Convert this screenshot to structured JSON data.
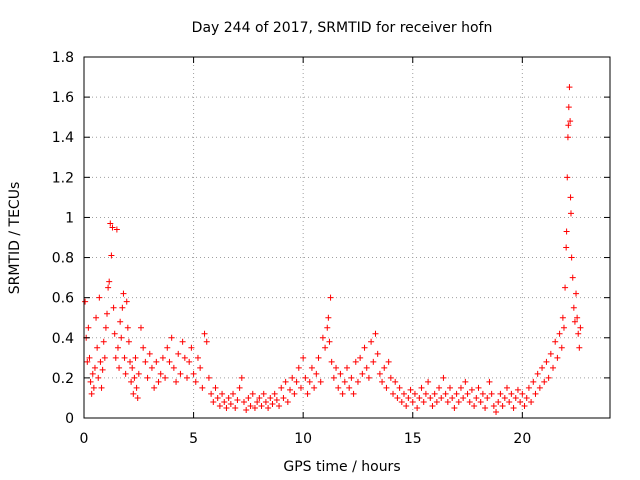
{
  "chart_data": {
    "type": "scatter",
    "title": "Day 244 of 2017, SRMTID for receiver hofn",
    "xlabel": "GPS time / hours",
    "ylabel": "SRMTID / TECUs",
    "xlim": [
      0,
      24
    ],
    "ylim": [
      0,
      1.8
    ],
    "grid": true,
    "marker": "+",
    "color": "#ff0000",
    "x_ticks": [
      "0",
      "5",
      "10",
      "15",
      "20"
    ],
    "y_ticks": [
      "0",
      "0.2",
      "0.4",
      "0.6",
      "0.8",
      "1",
      "1.2",
      "1.4",
      "1.6",
      "1.8"
    ],
    "series": [
      {
        "name": "SRMTID",
        "points": [
          [
            0.05,
            0.58
          ],
          [
            0.1,
            0.4
          ],
          [
            0.15,
            0.28
          ],
          [
            0.2,
            0.45
          ],
          [
            0.25,
            0.3
          ],
          [
            0.3,
            0.18
          ],
          [
            0.35,
            0.12
          ],
          [
            0.4,
            0.22
          ],
          [
            0.45,
            0.15
          ],
          [
            0.5,
            0.25
          ],
          [
            0.55,
            0.5
          ],
          [
            0.6,
            0.35
          ],
          [
            0.65,
            0.2
          ],
          [
            0.7,
            0.6
          ],
          [
            0.75,
            0.28
          ],
          [
            0.8,
            0.15
          ],
          [
            0.85,
            0.24
          ],
          [
            0.9,
            0.38
          ],
          [
            0.95,
            0.3
          ],
          [
            1.0,
            0.45
          ],
          [
            1.05,
            0.52
          ],
          [
            1.1,
            0.65
          ],
          [
            1.15,
            0.68
          ],
          [
            1.2,
            0.97
          ],
          [
            1.25,
            0.81
          ],
          [
            1.3,
            0.95
          ],
          [
            1.35,
            0.55
          ],
          [
            1.4,
            0.42
          ],
          [
            1.45,
            0.3
          ],
          [
            1.5,
            0.94
          ],
          [
            1.55,
            0.35
          ],
          [
            1.6,
            0.25
          ],
          [
            1.65,
            0.48
          ],
          [
            1.7,
            0.4
          ],
          [
            1.75,
            0.55
          ],
          [
            1.8,
            0.62
          ],
          [
            1.85,
            0.3
          ],
          [
            1.9,
            0.22
          ],
          [
            1.95,
            0.58
          ],
          [
            2.0,
            0.45
          ],
          [
            2.05,
            0.38
          ],
          [
            2.1,
            0.28
          ],
          [
            2.15,
            0.18
          ],
          [
            2.2,
            0.25
          ],
          [
            2.25,
            0.12
          ],
          [
            2.3,
            0.2
          ],
          [
            2.35,
            0.3
          ],
          [
            2.4,
            0.15
          ],
          [
            2.45,
            0.1
          ],
          [
            2.5,
            0.22
          ],
          [
            2.6,
            0.45
          ],
          [
            2.7,
            0.35
          ],
          [
            2.8,
            0.28
          ],
          [
            2.9,
            0.2
          ],
          [
            3.0,
            0.32
          ],
          [
            3.1,
            0.25
          ],
          [
            3.2,
            0.15
          ],
          [
            3.3,
            0.28
          ],
          [
            3.4,
            0.18
          ],
          [
            3.5,
            0.22
          ],
          [
            3.6,
            0.3
          ],
          [
            3.7,
            0.2
          ],
          [
            3.8,
            0.35
          ],
          [
            3.9,
            0.28
          ],
          [
            4.0,
            0.4
          ],
          [
            4.1,
            0.25
          ],
          [
            4.2,
            0.18
          ],
          [
            4.3,
            0.32
          ],
          [
            4.4,
            0.22
          ],
          [
            4.5,
            0.38
          ],
          [
            4.6,
            0.3
          ],
          [
            4.7,
            0.2
          ],
          [
            4.8,
            0.28
          ],
          [
            4.9,
            0.35
          ],
          [
            5.0,
            0.22
          ],
          [
            5.1,
            0.18
          ],
          [
            5.2,
            0.3
          ],
          [
            5.3,
            0.25
          ],
          [
            5.4,
            0.15
          ],
          [
            5.5,
            0.42
          ],
          [
            5.6,
            0.38
          ],
          [
            5.7,
            0.2
          ],
          [
            5.8,
            0.12
          ],
          [
            5.9,
            0.08
          ],
          [
            6.0,
            0.15
          ],
          [
            6.1,
            0.1
          ],
          [
            6.2,
            0.06
          ],
          [
            6.3,
            0.12
          ],
          [
            6.4,
            0.08
          ],
          [
            6.5,
            0.05
          ],
          [
            6.6,
            0.1
          ],
          [
            6.7,
            0.07
          ],
          [
            6.8,
            0.12
          ],
          [
            6.9,
            0.05
          ],
          [
            7.0,
            0.09
          ],
          [
            7.1,
            0.15
          ],
          [
            7.2,
            0.2
          ],
          [
            7.3,
            0.08
          ],
          [
            7.4,
            0.04
          ],
          [
            7.5,
            0.1
          ],
          [
            7.6,
            0.06
          ],
          [
            7.7,
            0.12
          ],
          [
            7.8,
            0.05
          ],
          [
            7.9,
            0.08
          ],
          [
            8.0,
            0.1
          ],
          [
            8.1,
            0.06
          ],
          [
            8.2,
            0.12
          ],
          [
            8.3,
            0.08
          ],
          [
            8.4,
            0.05
          ],
          [
            8.5,
            0.1
          ],
          [
            8.6,
            0.07
          ],
          [
            8.7,
            0.12
          ],
          [
            8.8,
            0.09
          ],
          [
            8.9,
            0.06
          ],
          [
            9.0,
            0.15
          ],
          [
            9.1,
            0.1
          ],
          [
            9.2,
            0.18
          ],
          [
            9.3,
            0.08
          ],
          [
            9.4,
            0.14
          ],
          [
            9.5,
            0.2
          ],
          [
            9.6,
            0.12
          ],
          [
            9.7,
            0.18
          ],
          [
            9.8,
            0.25
          ],
          [
            9.9,
            0.15
          ],
          [
            10.0,
            0.3
          ],
          [
            10.1,
            0.2
          ],
          [
            10.2,
            0.12
          ],
          [
            10.3,
            0.18
          ],
          [
            10.4,
            0.25
          ],
          [
            10.5,
            0.15
          ],
          [
            10.6,
            0.22
          ],
          [
            10.7,
            0.3
          ],
          [
            10.8,
            0.18
          ],
          [
            10.9,
            0.4
          ],
          [
            11.0,
            0.35
          ],
          [
            11.1,
            0.45
          ],
          [
            11.15,
            0.5
          ],
          [
            11.2,
            0.38
          ],
          [
            11.25,
            0.6
          ],
          [
            11.3,
            0.28
          ],
          [
            11.4,
            0.2
          ],
          [
            11.5,
            0.25
          ],
          [
            11.6,
            0.15
          ],
          [
            11.7,
            0.22
          ],
          [
            11.8,
            0.12
          ],
          [
            11.9,
            0.18
          ],
          [
            12.0,
            0.25
          ],
          [
            12.1,
            0.15
          ],
          [
            12.2,
            0.2
          ],
          [
            12.3,
            0.12
          ],
          [
            12.4,
            0.28
          ],
          [
            12.5,
            0.18
          ],
          [
            12.6,
            0.3
          ],
          [
            12.7,
            0.22
          ],
          [
            12.8,
            0.35
          ],
          [
            12.9,
            0.25
          ],
          [
            13.0,
            0.2
          ],
          [
            13.1,
            0.38
          ],
          [
            13.2,
            0.28
          ],
          [
            13.3,
            0.42
          ],
          [
            13.4,
            0.32
          ],
          [
            13.5,
            0.22
          ],
          [
            13.6,
            0.18
          ],
          [
            13.7,
            0.25
          ],
          [
            13.8,
            0.15
          ],
          [
            13.9,
            0.28
          ],
          [
            14.0,
            0.2
          ],
          [
            14.1,
            0.12
          ],
          [
            14.2,
            0.18
          ],
          [
            14.3,
            0.1
          ],
          [
            14.4,
            0.15
          ],
          [
            14.5,
            0.08
          ],
          [
            14.6,
            0.12
          ],
          [
            14.7,
            0.06
          ],
          [
            14.8,
            0.1
          ],
          [
            14.9,
            0.14
          ],
          [
            15.0,
            0.08
          ],
          [
            15.1,
            0.12
          ],
          [
            15.2,
            0.05
          ],
          [
            15.3,
            0.1
          ],
          [
            15.4,
            0.15
          ],
          [
            15.5,
            0.08
          ],
          [
            15.6,
            0.12
          ],
          [
            15.7,
            0.18
          ],
          [
            15.8,
            0.1
          ],
          [
            15.9,
            0.06
          ],
          [
            16.0,
            0.12
          ],
          [
            16.1,
            0.08
          ],
          [
            16.2,
            0.15
          ],
          [
            16.3,
            0.1
          ],
          [
            16.4,
            0.2
          ],
          [
            16.5,
            0.12
          ],
          [
            16.6,
            0.08
          ],
          [
            16.7,
            0.15
          ],
          [
            16.8,
            0.1
          ],
          [
            16.9,
            0.05
          ],
          [
            17.0,
            0.12
          ],
          [
            17.1,
            0.08
          ],
          [
            17.2,
            0.15
          ],
          [
            17.3,
            0.1
          ],
          [
            17.4,
            0.18
          ],
          [
            17.5,
            0.12
          ],
          [
            17.6,
            0.08
          ],
          [
            17.7,
            0.14
          ],
          [
            17.8,
            0.06
          ],
          [
            17.9,
            0.1
          ],
          [
            18.0,
            0.15
          ],
          [
            18.1,
            0.08
          ],
          [
            18.2,
            0.12
          ],
          [
            18.3,
            0.05
          ],
          [
            18.4,
            0.1
          ],
          [
            18.5,
            0.18
          ],
          [
            18.6,
            0.12
          ],
          [
            18.7,
            0.06
          ],
          [
            18.8,
            0.03
          ],
          [
            18.9,
            0.08
          ],
          [
            19.0,
            0.12
          ],
          [
            19.1,
            0.06
          ],
          [
            19.2,
            0.1
          ],
          [
            19.3,
            0.15
          ],
          [
            19.4,
            0.08
          ],
          [
            19.5,
            0.12
          ],
          [
            19.6,
            0.05
          ],
          [
            19.7,
            0.1
          ],
          [
            19.8,
            0.14
          ],
          [
            19.9,
            0.08
          ],
          [
            20.0,
            0.12
          ],
          [
            20.1,
            0.06
          ],
          [
            20.2,
            0.1
          ],
          [
            20.3,
            0.15
          ],
          [
            20.4,
            0.08
          ],
          [
            20.5,
            0.18
          ],
          [
            20.6,
            0.12
          ],
          [
            20.7,
            0.22
          ],
          [
            20.8,
            0.15
          ],
          [
            20.9,
            0.25
          ],
          [
            21.0,
            0.18
          ],
          [
            21.1,
            0.28
          ],
          [
            21.2,
            0.2
          ],
          [
            21.3,
            0.32
          ],
          [
            21.4,
            0.25
          ],
          [
            21.5,
            0.38
          ],
          [
            21.6,
            0.3
          ],
          [
            21.7,
            0.42
          ],
          [
            21.8,
            0.35
          ],
          [
            21.85,
            0.5
          ],
          [
            21.9,
            0.45
          ],
          [
            21.95,
            0.65
          ],
          [
            22.0,
            0.85
          ],
          [
            22.02,
            0.93
          ],
          [
            22.05,
            1.2
          ],
          [
            22.08,
            1.4
          ],
          [
            22.1,
            1.46
          ],
          [
            22.12,
            1.55
          ],
          [
            22.15,
            1.65
          ],
          [
            22.18,
            1.48
          ],
          [
            22.2,
            1.1
          ],
          [
            22.22,
            1.02
          ],
          [
            22.25,
            0.8
          ],
          [
            22.3,
            0.7
          ],
          [
            22.35,
            0.55
          ],
          [
            22.4,
            0.48
          ],
          [
            22.45,
            0.62
          ],
          [
            22.5,
            0.5
          ],
          [
            22.55,
            0.42
          ],
          [
            22.6,
            0.35
          ],
          [
            22.65,
            0.45
          ]
        ]
      }
    ]
  }
}
